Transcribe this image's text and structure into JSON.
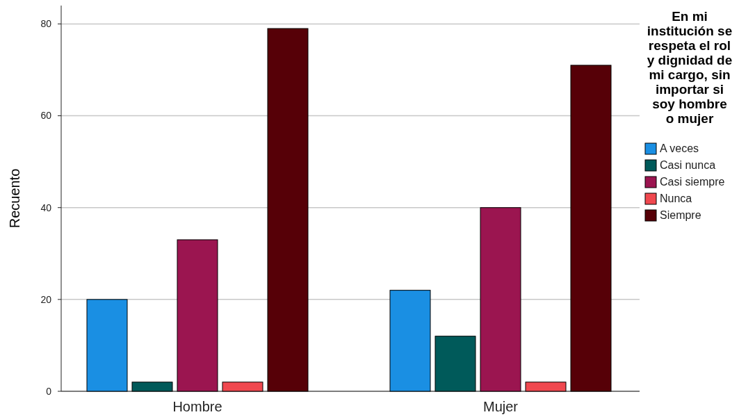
{
  "chart_data": {
    "type": "bar",
    "ylabel": "Recuento",
    "legend_title": "En mi institución se respeta el rol y dignidad de mi cargo, sin importar si soy hombre o mujer",
    "categories": [
      "Hombre",
      "Mujer"
    ],
    "series": [
      {
        "name": "A veces",
        "color": "#1a8fe3",
        "values": [
          20,
          22
        ]
      },
      {
        "name": "Casi nunca",
        "color": "#005a5a",
        "values": [
          2,
          12
        ]
      },
      {
        "name": "Casi siempre",
        "color": "#9b1550",
        "values": [
          33,
          40
        ]
      },
      {
        "name": "Nunca",
        "color": "#f0484f",
        "values": [
          2,
          2
        ]
      },
      {
        "name": "Siempre",
        "color": "#560007",
        "values": [
          79,
          71
        ]
      }
    ],
    "ylim": [
      0,
      84
    ],
    "yticks": [
      0,
      20,
      40,
      60,
      80
    ],
    "grid": "y",
    "legend": "right"
  }
}
